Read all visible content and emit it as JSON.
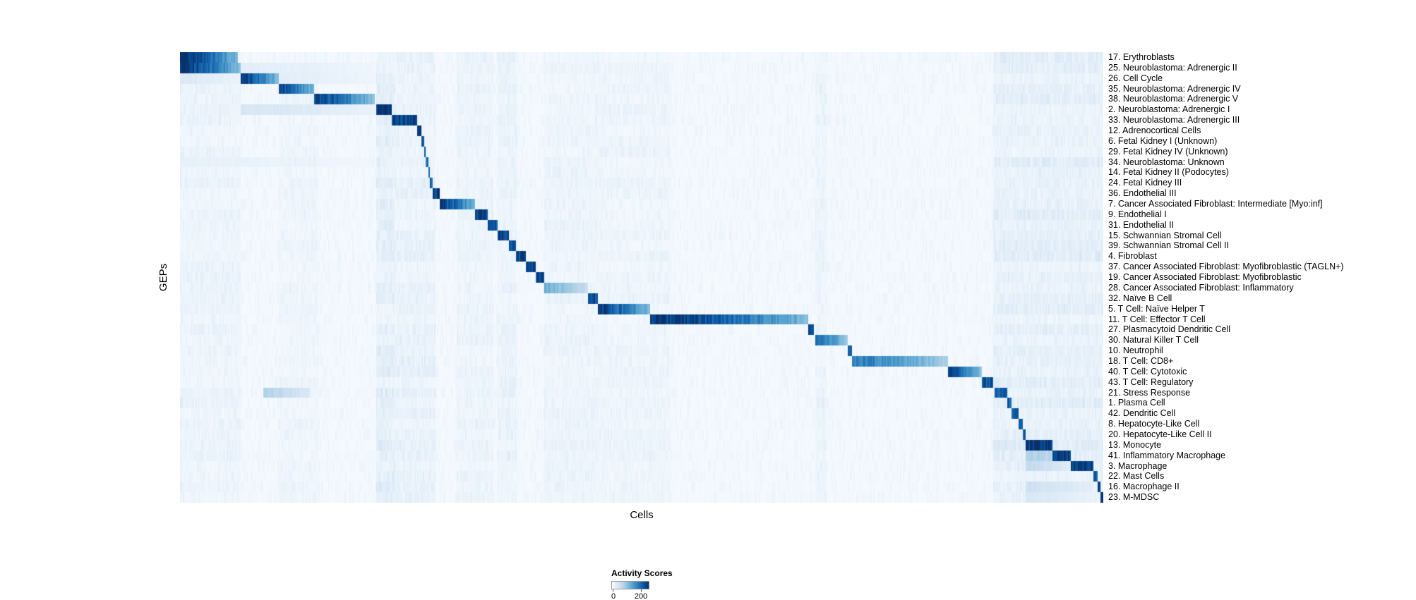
{
  "chart_data": {
    "type": "heatmap",
    "title": "",
    "xlabel": "Cells",
    "ylabel": "GEPs",
    "colorbar": {
      "label": "Activity Scores",
      "min": 0,
      "max": 200,
      "max_tick_fraction": 0.78
    },
    "colormap": [
      "#f7fbff",
      "#deebf7",
      "#c6dbef",
      "#9ecae1",
      "#6baed6",
      "#4292c6",
      "#2171b5",
      "#08519c",
      "#08306b"
    ],
    "blocks_format": "s=start fraction of x-axis, e=end fraction, i=peak intensity 0-1 (1 = darkest blue = highest activity score)",
    "rows": [
      {
        "label": "17. Erythroblasts",
        "blocks": [
          {
            "s": 0.0,
            "e": 0.063,
            "i": 1.0
          }
        ]
      },
      {
        "label": "25. Neuroblastoma: Adrenergic II",
        "blocks": [
          {
            "s": 0.0,
            "e": 0.066,
            "i": 0.97
          },
          {
            "s": 0.066,
            "e": 0.21,
            "i": 0.1
          }
        ]
      },
      {
        "label": "26. Cell Cycle",
        "blocks": [
          {
            "s": 0.066,
            "e": 0.107,
            "i": 0.95
          },
          {
            "s": 0.0,
            "e": 0.066,
            "i": 0.14
          },
          {
            "s": 0.107,
            "e": 0.21,
            "i": 0.1
          }
        ]
      },
      {
        "label": "35. Neuroblastoma: Adrenergic IV",
        "blocks": [
          {
            "s": 0.107,
            "e": 0.146,
            "i": 0.93
          }
        ]
      },
      {
        "label": "38. Neuroblastoma: Adrenergic V",
        "blocks": [
          {
            "s": 0.146,
            "e": 0.211,
            "i": 0.92
          }
        ]
      },
      {
        "label": "2. Neuroblastoma: Adrenergic I",
        "blocks": [
          {
            "s": 0.213,
            "e": 0.229,
            "i": 1.0
          },
          {
            "s": 0.066,
            "e": 0.211,
            "i": 0.16
          }
        ]
      },
      {
        "label": "33. Neuroblastoma: Adrenergic III",
        "blocks": [
          {
            "s": 0.229,
            "e": 0.257,
            "i": 0.95
          }
        ]
      },
      {
        "label": "12. Adrenocortical Cells",
        "blocks": [
          {
            "s": 0.257,
            "e": 0.261,
            "i": 0.9
          }
        ]
      },
      {
        "label": "6. Fetal Kidney I (Unknown)",
        "blocks": [
          {
            "s": 0.261,
            "e": 0.264,
            "i": 0.85
          }
        ]
      },
      {
        "label": "29. Fetal Kidney IV (Unknown)",
        "blocks": [
          {
            "s": 0.264,
            "e": 0.266,
            "i": 0.85
          }
        ]
      },
      {
        "label": "34. Neuroblastoma: Unknown",
        "blocks": [
          {
            "s": 0.266,
            "e": 0.2685,
            "i": 0.8
          },
          {
            "s": 0.0,
            "e": 0.21,
            "i": 0.08
          }
        ]
      },
      {
        "label": "14. Fetal Kidney II (Podocytes)",
        "blocks": [
          {
            "s": 0.2685,
            "e": 0.271,
            "i": 0.85
          }
        ]
      },
      {
        "label": "24. Fetal Kidney III",
        "blocks": [
          {
            "s": 0.271,
            "e": 0.2735,
            "i": 0.8
          }
        ]
      },
      {
        "label": "36. Endothelial III",
        "blocks": [
          {
            "s": 0.2735,
            "e": 0.282,
            "i": 0.95
          }
        ]
      },
      {
        "label": "7. Cancer Associated Fibroblast: Intermediate [Myo:inf]",
        "blocks": [
          {
            "s": 0.282,
            "e": 0.32,
            "i": 0.95
          }
        ]
      },
      {
        "label": "9. Endothelial I",
        "blocks": [
          {
            "s": 0.32,
            "e": 0.334,
            "i": 0.9
          }
        ]
      },
      {
        "label": "31. Endothelial II",
        "blocks": [
          {
            "s": 0.334,
            "e": 0.344,
            "i": 0.85
          }
        ]
      },
      {
        "label": "15. Schwannian Stromal Cell",
        "blocks": [
          {
            "s": 0.344,
            "e": 0.356,
            "i": 0.9
          }
        ]
      },
      {
        "label": "39. Schwannian Stromal Cell II",
        "blocks": [
          {
            "s": 0.356,
            "e": 0.364,
            "i": 0.85
          }
        ]
      },
      {
        "label": "4. Fibroblast",
        "blocks": [
          {
            "s": 0.364,
            "e": 0.375,
            "i": 0.9
          }
        ]
      },
      {
        "label": "37. Cancer Associated Fibroblast: Myofibroblastic (TAGLN+)",
        "blocks": [
          {
            "s": 0.375,
            "e": 0.386,
            "i": 0.95
          }
        ]
      },
      {
        "label": "19. Cancer Associated Fibroblast: Myofibroblastic",
        "blocks": [
          {
            "s": 0.386,
            "e": 0.394,
            "i": 0.9
          }
        ]
      },
      {
        "label": "28. Cancer Associated Fibroblast: Inflammatory",
        "blocks": [
          {
            "s": 0.394,
            "e": 0.442,
            "i": 0.5
          }
        ]
      },
      {
        "label": "32. Naïve B Cell",
        "blocks": [
          {
            "s": 0.442,
            "e": 0.452,
            "i": 0.88
          }
        ]
      },
      {
        "label": "5. T Cell: Naïve Helper T",
        "blocks": [
          {
            "s": 0.452,
            "e": 0.509,
            "i": 0.95
          }
        ]
      },
      {
        "label": "11. T Cell: Effector T Cell",
        "blocks": [
          {
            "s": 0.509,
            "e": 0.681,
            "i": 1.0
          }
        ]
      },
      {
        "label": "27. Plasmacytoid Dendritic Cell",
        "blocks": [
          {
            "s": 0.681,
            "e": 0.686,
            "i": 0.9
          }
        ]
      },
      {
        "label": "30. Natural Killer T Cell",
        "blocks": [
          {
            "s": 0.688,
            "e": 0.723,
            "i": 0.78
          }
        ]
      },
      {
        "label": "10. Neutrophil",
        "blocks": [
          {
            "s": 0.723,
            "e": 0.728,
            "i": 0.85
          }
        ]
      },
      {
        "label": "18. T Cell: CD8+",
        "blocks": [
          {
            "s": 0.728,
            "e": 0.832,
            "i": 0.72
          }
        ]
      },
      {
        "label": "40. T Cell: Cytotoxic",
        "blocks": [
          {
            "s": 0.832,
            "e": 0.868,
            "i": 0.9
          }
        ]
      },
      {
        "label": "43. T Cell: Regulatory",
        "blocks": [
          {
            "s": 0.868,
            "e": 0.881,
            "i": 0.85
          }
        ]
      },
      {
        "label": "21. Stress Response",
        "blocks": [
          {
            "s": 0.882,
            "e": 0.896,
            "i": 0.82
          },
          {
            "s": 0.09,
            "e": 0.14,
            "i": 0.3
          }
        ]
      },
      {
        "label": "1. Plasma Cell",
        "blocks": [
          {
            "s": 0.896,
            "e": 0.901,
            "i": 0.85
          }
        ]
      },
      {
        "label": "42. Dendritic Cell",
        "blocks": [
          {
            "s": 0.901,
            "e": 0.908,
            "i": 0.85
          }
        ]
      },
      {
        "label": "8. Hepatocyte-Like Cell",
        "blocks": [
          {
            "s": 0.908,
            "e": 0.9125,
            "i": 0.8
          }
        ]
      },
      {
        "label": "20. Hepatocyte-Like Cell II",
        "blocks": [
          {
            "s": 0.9125,
            "e": 0.9165,
            "i": 0.8
          }
        ]
      },
      {
        "label": "13. Monocyte",
        "blocks": [
          {
            "s": 0.9165,
            "e": 0.945,
            "i": 0.97
          },
          {
            "s": 0.88,
            "e": 0.9165,
            "i": 0.15
          }
        ]
      },
      {
        "label": "41. Inflammatory Macrophage",
        "blocks": [
          {
            "s": 0.945,
            "e": 0.9655,
            "i": 0.95
          },
          {
            "s": 0.9165,
            "e": 0.945,
            "i": 0.3
          }
        ]
      },
      {
        "label": "3. Macrophage",
        "blocks": [
          {
            "s": 0.9655,
            "e": 0.99,
            "i": 0.95
          },
          {
            "s": 0.9165,
            "e": 0.9655,
            "i": 0.25
          }
        ]
      },
      {
        "label": "22. Mast Cells",
        "blocks": [
          {
            "s": 0.99,
            "e": 0.9935,
            "i": 0.85
          }
        ]
      },
      {
        "label": "16. Macrophage II",
        "blocks": [
          {
            "s": 0.9935,
            "e": 0.9975,
            "i": 0.92
          },
          {
            "s": 0.9165,
            "e": 0.99,
            "i": 0.2
          }
        ]
      },
      {
        "label": "23. M-MDSC",
        "blocks": [
          {
            "s": 0.9975,
            "e": 1.0,
            "i": 1.0
          },
          {
            "s": 0.9165,
            "e": 0.99,
            "i": 0.15
          }
        ]
      }
    ],
    "streaks": [
      {
        "s": 0.213,
        "e": 0.232,
        "i": 0.09
      },
      {
        "s": 0.232,
        "e": 0.276,
        "i": 0.06
      },
      {
        "s": 0.3,
        "e": 0.34,
        "i": 0.04
      },
      {
        "s": 0.344,
        "e": 0.366,
        "i": 0.05
      },
      {
        "s": 0.394,
        "e": 0.452,
        "i": 0.04
      },
      {
        "s": 0.452,
        "e": 0.53,
        "i": 0.03
      },
      {
        "s": 0.688,
        "e": 0.7,
        "i": 0.04
      },
      {
        "s": 0.88,
        "e": 1.0,
        "i": 0.08
      },
      {
        "s": 0.0,
        "e": 0.066,
        "i": 0.04
      },
      {
        "s": 0.107,
        "e": 0.15,
        "i": 0.03
      }
    ]
  }
}
